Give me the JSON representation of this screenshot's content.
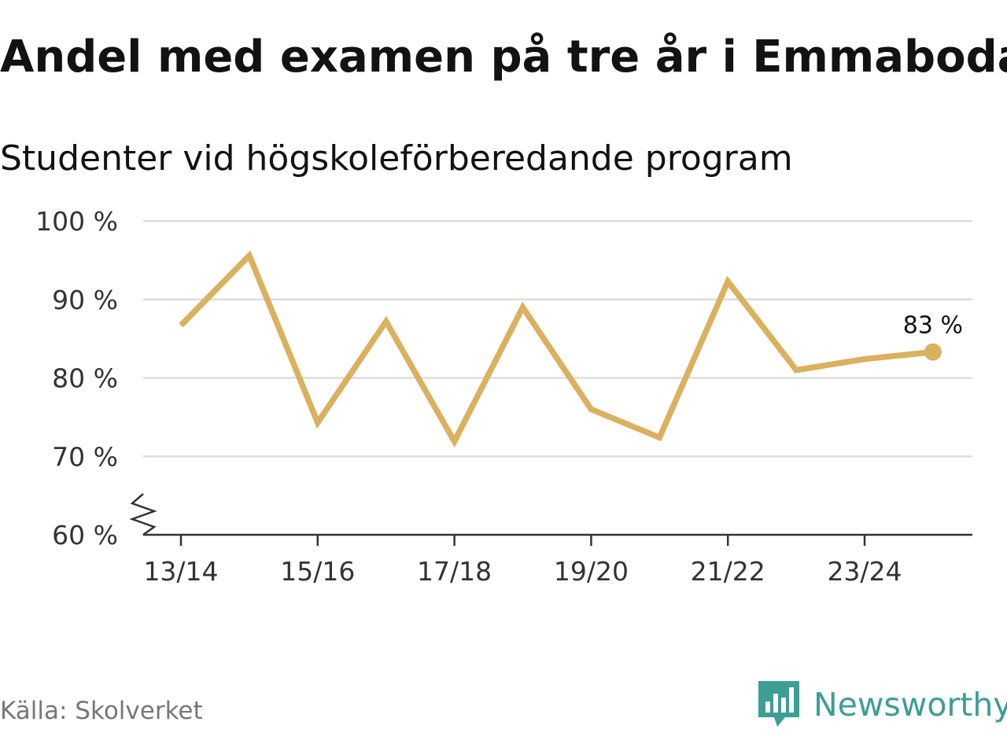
{
  "title": "Andel med examen på tre år i Emmaboda",
  "subtitle": "Studenter vid högskoleförberedande program",
  "source": "Källa: Skolverket",
  "brand": {
    "name": "Newsworthy",
    "icon": "newsworthy-logo-icon",
    "color": "#3d9e96"
  },
  "chart_data": {
    "type": "line",
    "x": [
      "13/14",
      "14/15",
      "15/16",
      "16/17",
      "17/18",
      "18/19",
      "19/20",
      "20/21",
      "21/22",
      "22/23",
      "23/24",
      "24/25"
    ],
    "x_tick_labels": [
      "13/14",
      "15/16",
      "17/18",
      "19/20",
      "21/22",
      "23/24"
    ],
    "series": [
      {
        "values": [
          86.7,
          95.6,
          74.3,
          87.2,
          71.9,
          89.0,
          76.0,
          72.4,
          92.3,
          81.0,
          82.4,
          83.3
        ],
        "color": "#dbb05e"
      }
    ],
    "ylim": [
      60,
      100
    ],
    "y_ticks": [
      60,
      70,
      80,
      90,
      100
    ],
    "y_tick_labels": [
      "60 %",
      "70 %",
      "80 %",
      "90 %",
      "100 %"
    ],
    "axis_break": true,
    "grid": true,
    "last_value_label": "83 %"
  }
}
